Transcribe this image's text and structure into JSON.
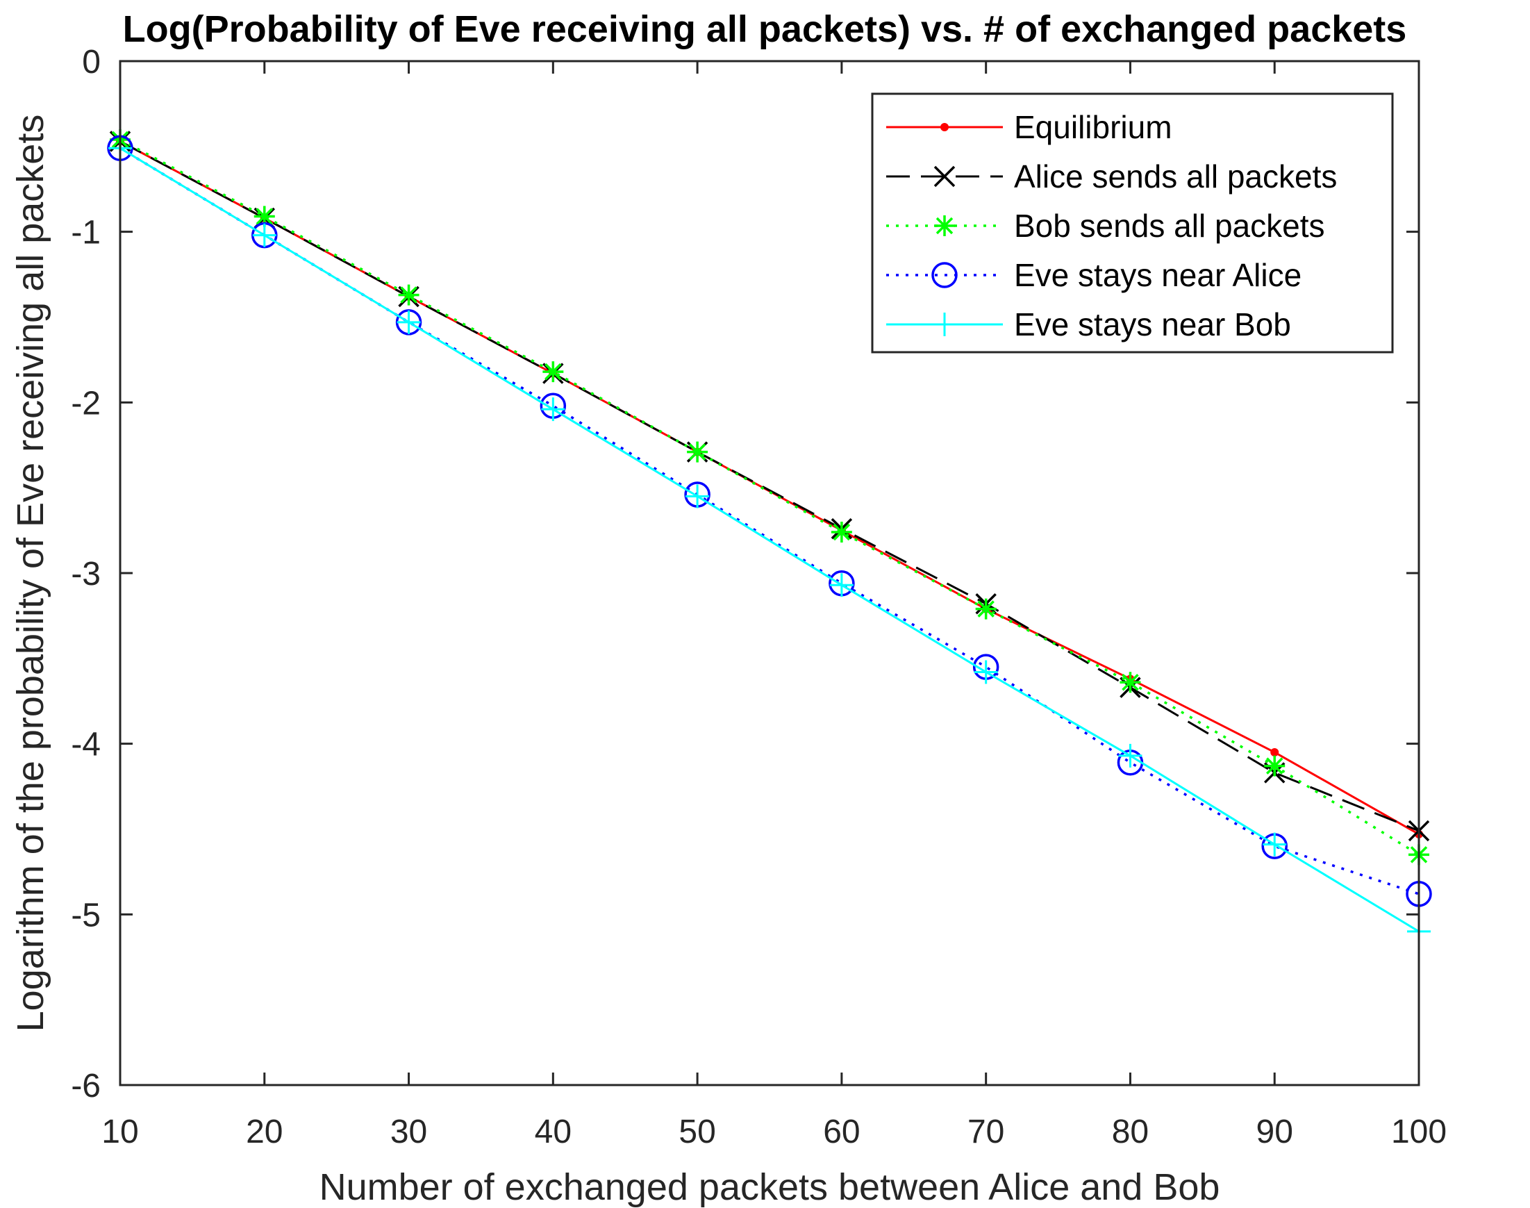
{
  "chart_data": {
    "type": "line",
    "title": "Log(Probability of Eve receiving all packets) vs. # of exchanged packets",
    "xlabel": "Number of exchanged packets between Alice and Bob",
    "ylabel": "Logarithm of the probability of Eve receiving all packets",
    "xlim": [
      10,
      100
    ],
    "ylim": [
      -6,
      0
    ],
    "xticks": [
      10,
      20,
      30,
      40,
      50,
      60,
      70,
      80,
      90,
      100
    ],
    "yticks": [
      0,
      -1,
      -2,
      -3,
      -4,
      -5,
      -6
    ],
    "xtick_labels": [
      "10",
      "20",
      "30",
      "40",
      "50",
      "60",
      "70",
      "80",
      "90",
      "100"
    ],
    "ytick_labels": [
      "0",
      "-1",
      "-2",
      "-3",
      "-4",
      "-5",
      "-6"
    ],
    "legend_position": "top-right",
    "x": [
      10,
      20,
      30,
      40,
      50,
      60,
      70,
      80,
      90,
      100
    ],
    "series": [
      {
        "name": "Equilibrium",
        "color": "#ff0000",
        "line": "solid",
        "marker": "dot",
        "values": [
          -0.47,
          -0.92,
          -1.38,
          -1.83,
          -2.29,
          -2.75,
          -3.21,
          -3.62,
          -4.05,
          -4.53
        ]
      },
      {
        "name": "Alice sends all packets",
        "color": "#000000",
        "line": "dashed",
        "marker": "x",
        "values": [
          -0.47,
          -0.92,
          -1.38,
          -1.83,
          -2.29,
          -2.74,
          -3.18,
          -3.67,
          -4.17,
          -4.51
        ]
      },
      {
        "name": "Bob sends all packets",
        "color": "#00ff00",
        "line": "dotted",
        "marker": "star",
        "values": [
          -0.46,
          -0.91,
          -1.37,
          -1.82,
          -2.29,
          -2.76,
          -3.21,
          -3.64,
          -4.13,
          -4.65
        ]
      },
      {
        "name": "Eve stays near Alice",
        "color": "#0000ff",
        "line": "dotted",
        "marker": "circle",
        "values": [
          -0.51,
          -1.02,
          -1.53,
          -2.02,
          -2.54,
          -3.06,
          -3.55,
          -4.11,
          -4.6,
          -4.88
        ]
      },
      {
        "name": "Eve stays near Bob",
        "color": "#00ffff",
        "line": "solid",
        "marker": "plus",
        "values": [
          -0.51,
          -1.02,
          -1.53,
          -2.04,
          -2.55,
          -3.07,
          -3.58,
          -4.07,
          -4.59,
          -5.1
        ]
      }
    ]
  }
}
